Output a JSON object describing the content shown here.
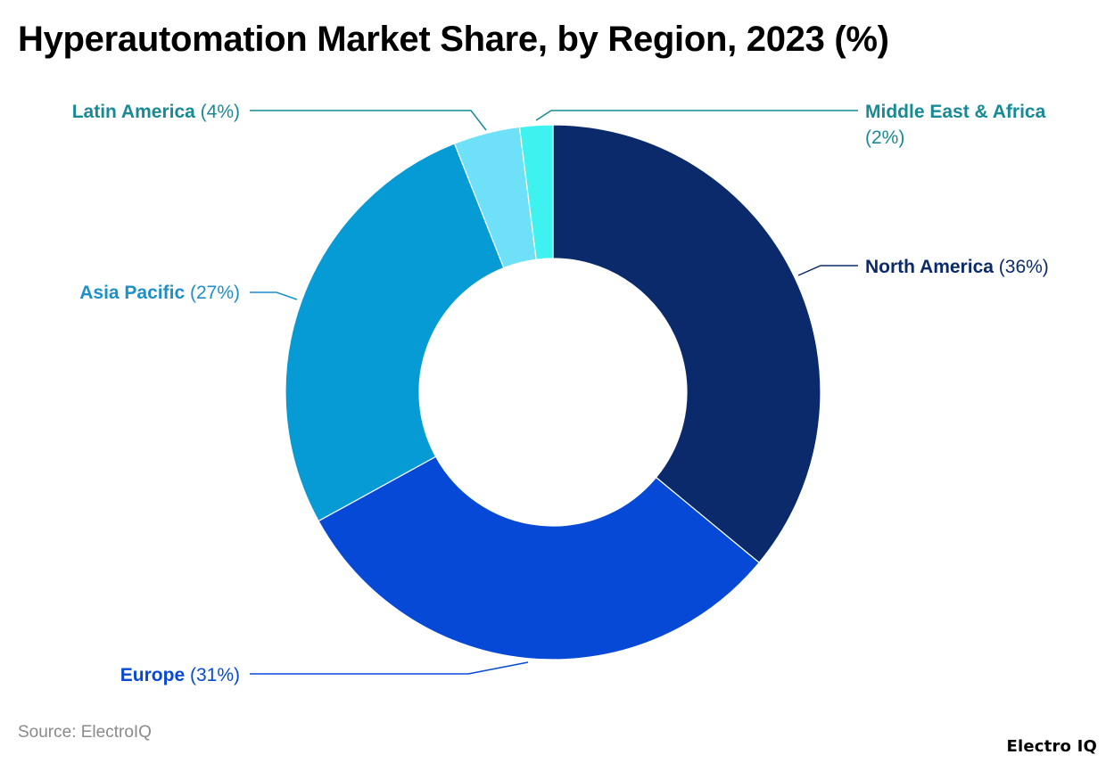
{
  "chart_data": {
    "type": "pie",
    "variant": "donut",
    "title": "Hyperautomation Market Share, by Region, 2023 (%)",
    "categories": [
      "North America",
      "Europe",
      "Asia Pacific",
      "Latin America",
      "Middle East & Africa"
    ],
    "values": [
      36,
      31,
      27,
      4,
      2
    ],
    "value_labels": [
      "(36%)",
      "(31%)",
      "(27%)",
      "(4%)",
      "(2%)"
    ],
    "colors": [
      "#0b2a6b",
      "#0549d6",
      "#079bd6",
      "#6ee0f7",
      "#3ef2ef"
    ],
    "label_colors": [
      "#0b2a6b",
      "#0549d6",
      "#1b90c9",
      "#178a96",
      "#178a96"
    ],
    "start_angle": "12 o'clock",
    "direction": "clockwise"
  },
  "source": "Source: ElectroIQ",
  "brand": "Electro IQ"
}
